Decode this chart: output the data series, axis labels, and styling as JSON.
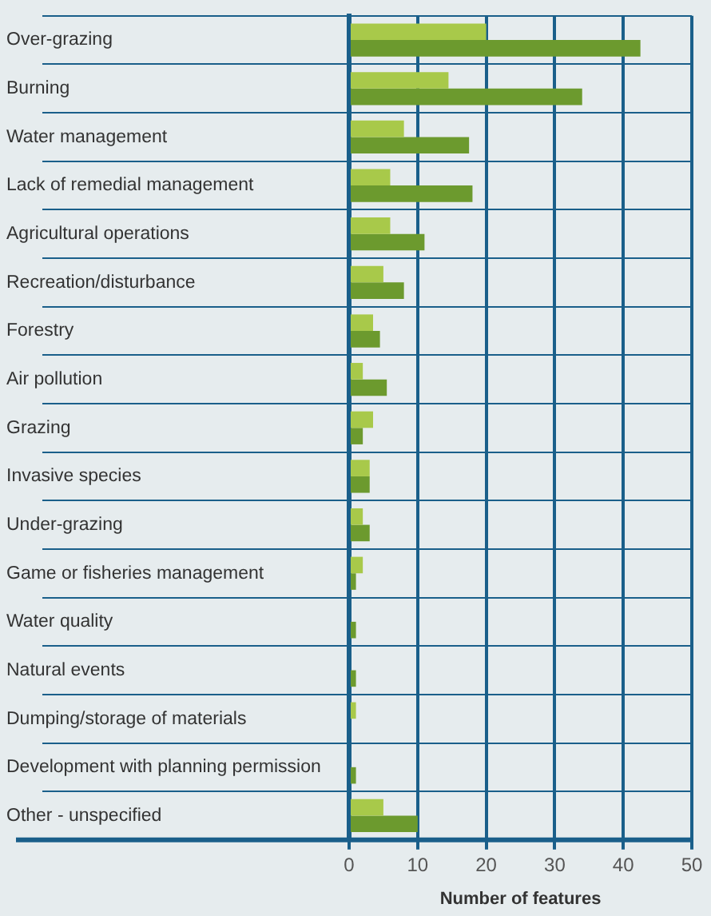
{
  "chart_data": {
    "type": "bar",
    "orientation": "horizontal",
    "xlabel": "Number of features",
    "categories": [
      "Over-grazing",
      "Burning",
      "Water management",
      "Lack of remedial management",
      "Agricultural operations",
      "Recreation/disturbance",
      "Forestry",
      "Air pollution",
      "Grazing",
      "Invasive species",
      "Under-grazing",
      "Game or fisheries management",
      "Water quality",
      "Natural events",
      "Dumping/storage of materials",
      "Development with planning permission",
      "Other - unspecified"
    ],
    "series": [
      {
        "color": "#a8c94a",
        "values": [
          20,
          14.5,
          8,
          6,
          6,
          5,
          3.5,
          2,
          3.5,
          3,
          2,
          2,
          0,
          0,
          1,
          0,
          5
        ]
      },
      {
        "color": "#6c9a2e",
        "values": [
          42.5,
          34,
          17.5,
          18,
          11,
          8,
          4.5,
          5.5,
          2,
          3,
          3,
          1,
          1,
          1,
          0,
          1,
          10
        ]
      }
    ],
    "xlim": [
      0,
      50
    ],
    "xticks": [
      0,
      10,
      20,
      30,
      40,
      50
    ],
    "grid": true,
    "legend": false
  }
}
